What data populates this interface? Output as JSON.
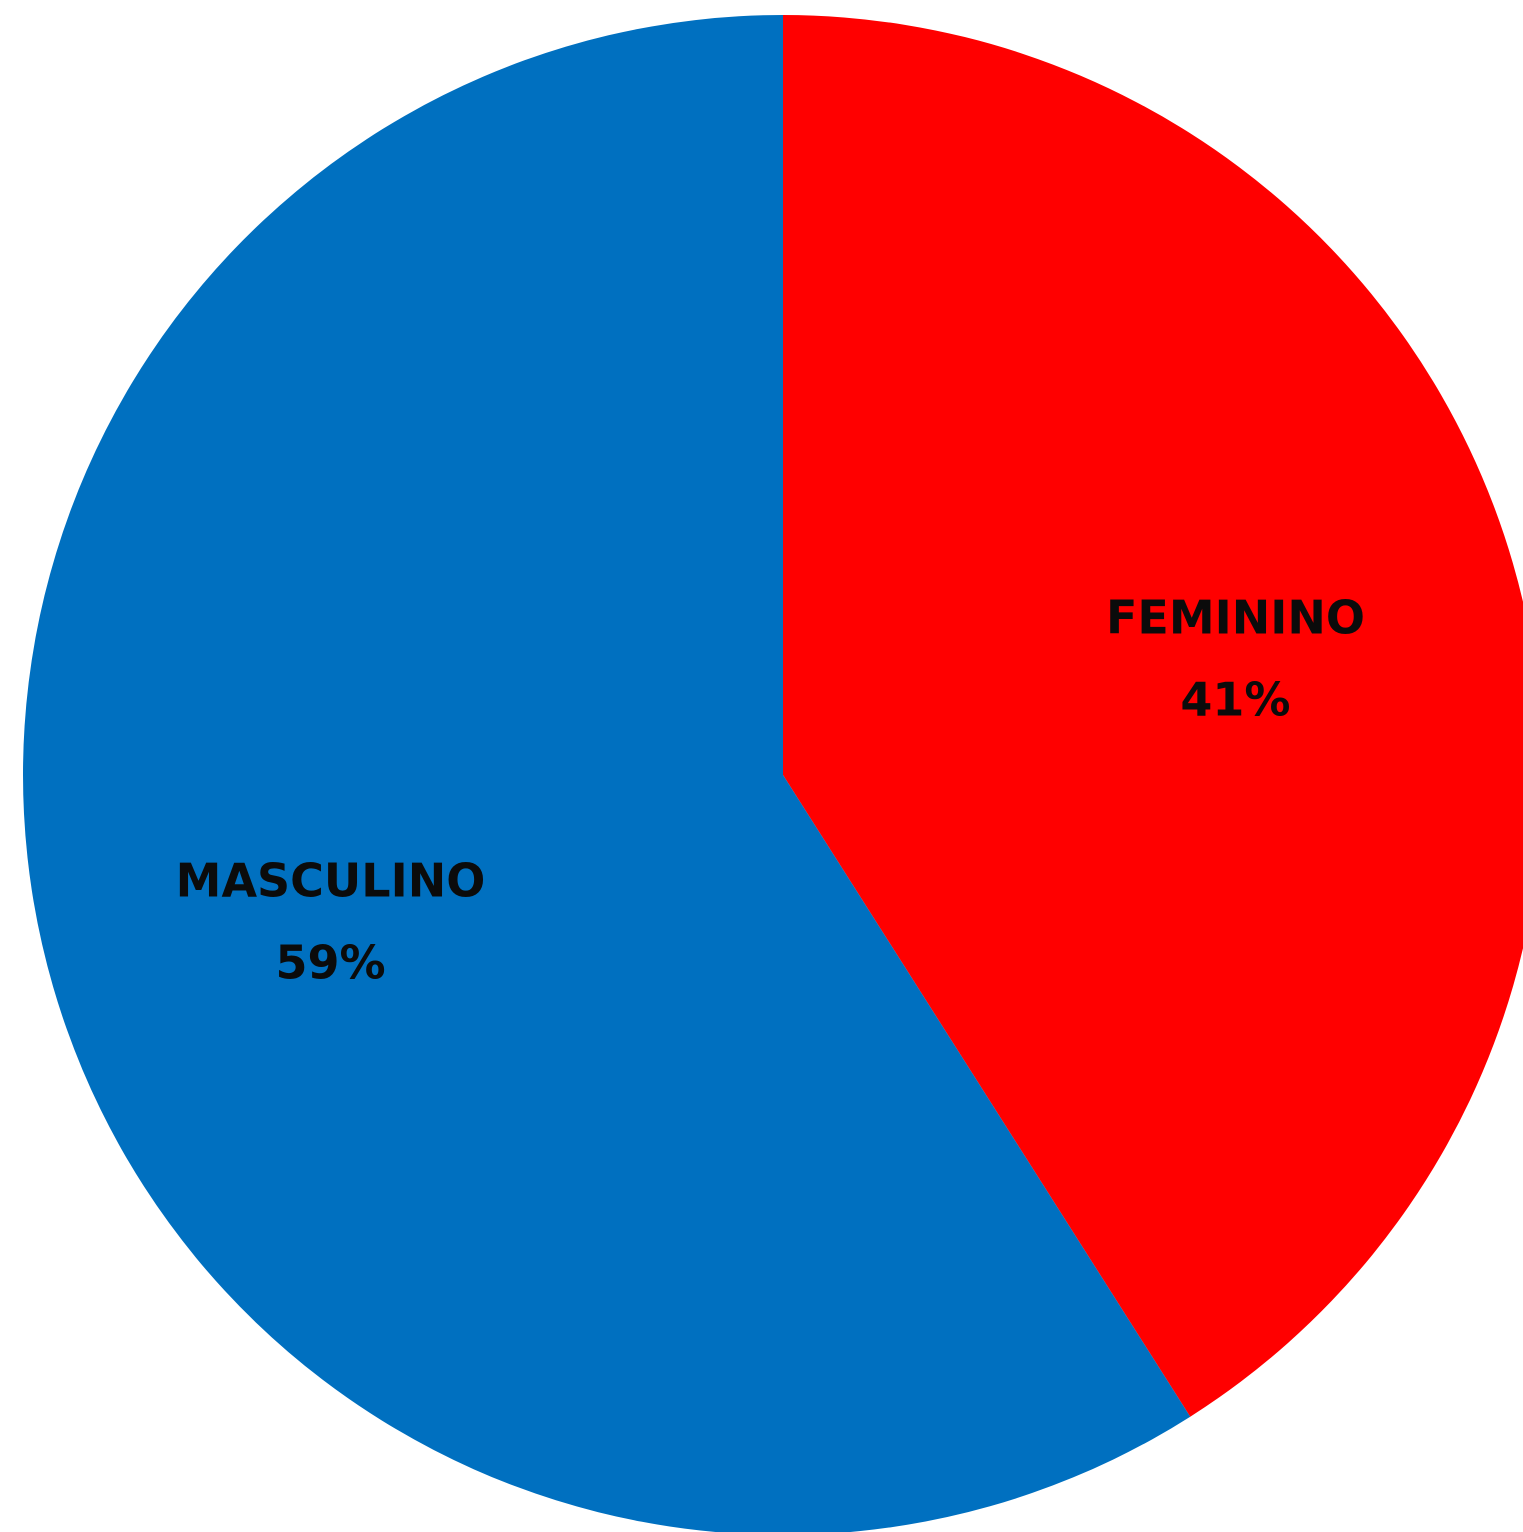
{
  "chart_data": {
    "type": "pie",
    "start": "top",
    "direction": "clockwise",
    "slices": [
      {
        "name": "FEMININO",
        "value": 41,
        "value_label": "41%",
        "color": "#FF0000"
      },
      {
        "name": "MASCULINO",
        "value": 59,
        "value_label": "59%",
        "color": "#0070C0"
      }
    ],
    "legend": "none"
  }
}
